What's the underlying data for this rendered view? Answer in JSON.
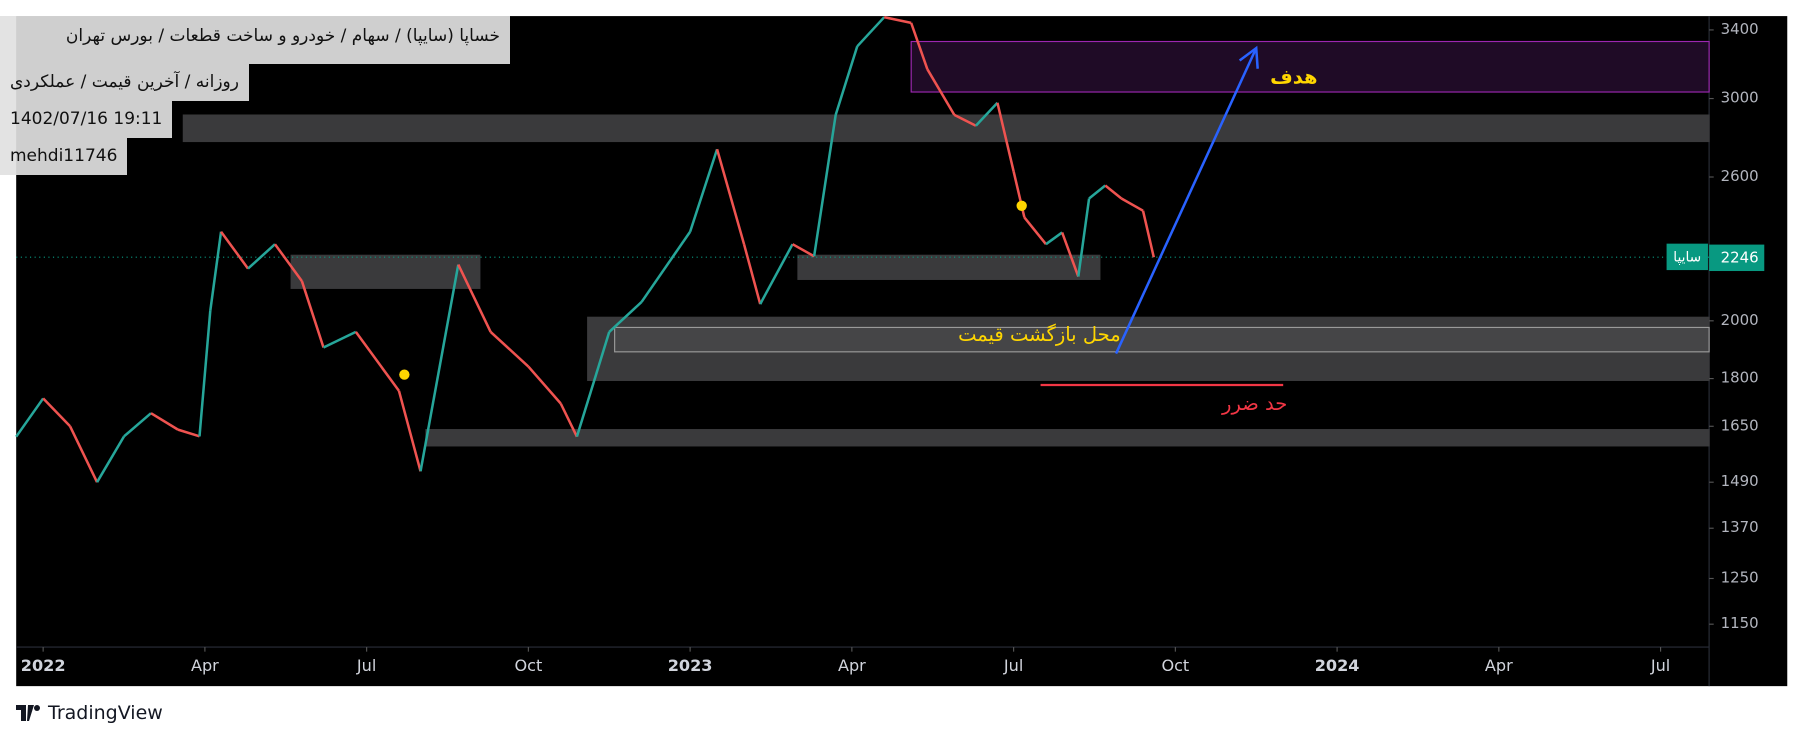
{
  "header": {
    "title": "خساپا (سایپا) / سهام / خودرو و ساخت قطعات / بورس تهران",
    "subtitle": "روزانه / آخرین قیمت / عملکردی",
    "timestamp": "1402/07/16 19:11",
    "author": "mehdi11746"
  },
  "chart_data": {
    "type": "line",
    "log_scale": true,
    "x": [
      -0.5,
      0.0,
      0.5,
      1.0,
      1.5,
      2.0,
      2.5,
      2.9,
      3.1,
      3.3,
      3.8,
      4.3,
      4.8,
      5.2,
      5.8,
      6.6,
      7.0,
      7.7,
      8.3,
      9.0,
      9.6,
      9.9,
      10.5,
      11.1,
      12.0,
      12.5,
      13.0,
      13.3,
      13.9,
      14.3,
      14.7,
      15.1,
      15.6,
      16.1,
      16.4,
      16.9,
      17.3,
      17.7,
      18.0,
      18.2,
      18.6,
      18.9,
      19.2,
      19.4,
      19.7,
      20.0,
      20.4,
      20.6
    ],
    "series": [
      {
        "name": "سایپا",
        "up_color": "#26a69a",
        "down_color": "#ef5350",
        "values": [
          1619,
          1736,
          1650,
          1490,
          1620,
          1690,
          1640,
          1620,
          2037,
          2353,
          2200,
          2300,
          2150,
          1905,
          1960,
          1760,
          1520,
          2216,
          1960,
          1840,
          1720,
          1619,
          1960,
          2070,
          2353,
          2735,
          2300,
          2062,
          2300,
          2250,
          2912,
          3300,
          3480,
          3444,
          3165,
          2912,
          2855,
          2977,
          2627,
          2415,
          2300,
          2350,
          2168,
          2500,
          2560,
          2500,
          2445,
          2246
        ]
      }
    ],
    "last_price": 2246,
    "last_price_color": "#089981",
    "xlim": [
      -0.5,
      30.9
    ],
    "xticks": [
      {
        "value": 0,
        "label": "2022"
      },
      {
        "value": 3,
        "label": "Apr"
      },
      {
        "value": 6,
        "label": "Jul"
      },
      {
        "value": 9,
        "label": "Oct"
      },
      {
        "value": 12,
        "label": "2023"
      },
      {
        "value": 15,
        "label": "Apr"
      },
      {
        "value": 18,
        "label": "Jul"
      },
      {
        "value": 21,
        "label": "Oct"
      },
      {
        "value": 24,
        "label": "2024"
      },
      {
        "value": 27,
        "label": "Apr"
      },
      {
        "value": 30,
        "label": "Jul"
      }
    ],
    "ylim": [
      1103,
      3487
    ],
    "yticks": [
      3400,
      3000,
      2600,
      2000,
      1800,
      1650,
      1490,
      1370,
      1250,
      1150
    ],
    "zones": [
      {
        "x": [
          16.1,
          30.9
        ],
        "y": [
          3036,
          3329
        ],
        "fill": "#1f0b26",
        "stroke": "#9c27b0"
      },
      {
        "x": [
          2.6,
          30.9
        ],
        "y": [
          2774,
          2911
        ],
        "fill": "#3a3a3c",
        "stroke": "#3a3a3c"
      },
      {
        "x": [
          4.6,
          8.1
        ],
        "y": [
          2122,
          2254
        ],
        "fill": "#3a3a3c",
        "stroke": "#3a3a3c"
      },
      {
        "x": [
          14.0,
          19.6
        ],
        "y": [
          2157,
          2254
        ],
        "fill": "#3a3a3c",
        "stroke": "#3a3a3c"
      },
      {
        "x": [
          10.1,
          30.9
        ],
        "y": [
          1794,
          2013
        ],
        "fill": "#3a3a3c",
        "stroke": "#3a3a3c"
      },
      {
        "x": [
          10.6,
          30.9
        ],
        "y": [
          1890,
          1976
        ],
        "fill": "#454547",
        "stroke": "#9a9a9a"
      },
      {
        "x": [
          7.1,
          30.9
        ],
        "y": [
          1592,
          1640
        ],
        "fill": "#3a3a3c",
        "stroke": "#3a3a3c"
      }
    ],
    "markers": {
      "x": [
        6.7,
        18.15
      ],
      "y": [
        1813,
        2467
      ],
      "color": "#ffd600"
    },
    "arrow": {
      "x": [
        19.9,
        22.5
      ],
      "y": [
        1884,
        3289
      ],
      "color": "#2962ff"
    },
    "stop_line": {
      "x": [
        18.5,
        23.0
      ],
      "y": 1779,
      "color": "#f23645"
    },
    "annotations": {
      "target": "هدف",
      "return_zone": "محل بازگشت قیمت",
      "stop_loss": "حد ضرر"
    }
  },
  "branding": "TradingView"
}
